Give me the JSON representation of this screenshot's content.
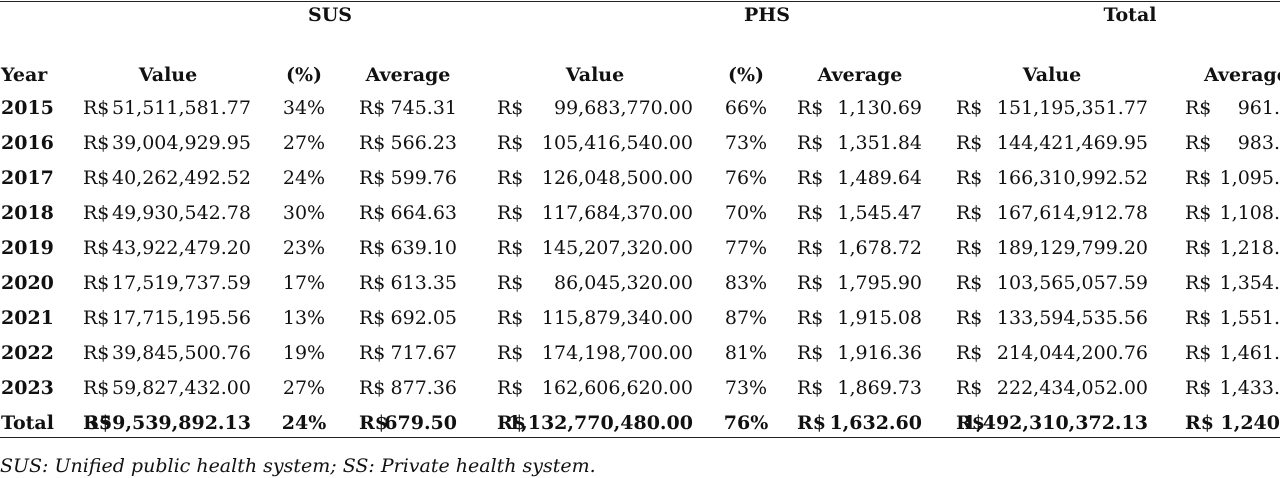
{
  "groups": {
    "sus": "SUS",
    "phs": "PHS",
    "total": "Total"
  },
  "columns": {
    "year": "Year",
    "sus_value": "Value",
    "sus_pct": "(%)",
    "sus_avg": "Average",
    "phs_value": "Value",
    "phs_pct": "(%)",
    "phs_avg": "Average",
    "total_value": "Value",
    "total_avg": "Average"
  },
  "currency": "R$",
  "rows": [
    {
      "year": "2015",
      "sus_value": "51,511,581.77",
      "sus_pct": "34%",
      "sus_avg": "745.31",
      "phs_value": "99,683,770.00",
      "phs_pct": "66%",
      "phs_avg": "1,130.69",
      "total_value": "151,195,351.77",
      "total_avg": "961."
    },
    {
      "year": "2016",
      "sus_value": "39,004,929.95",
      "sus_pct": "27%",
      "sus_avg": "566.23",
      "phs_value": "105,416,540.00",
      "phs_pct": "73%",
      "phs_avg": "1,351.84",
      "total_value": "144,421,469.95",
      "total_avg": "983."
    },
    {
      "year": "2017",
      "sus_value": "40,262,492.52",
      "sus_pct": "24%",
      "sus_avg": "599.76",
      "phs_value": "126,048,500.00",
      "phs_pct": "76%",
      "phs_avg": "1,489.64",
      "total_value": "166,310,992.52",
      "total_avg": "1,095."
    },
    {
      "year": "2018",
      "sus_value": "49,930,542.78",
      "sus_pct": "30%",
      "sus_avg": "664.63",
      "phs_value": "117,684,370.00",
      "phs_pct": "70%",
      "phs_avg": "1,545.47",
      "total_value": "167,614,912.78",
      "total_avg": "1,108."
    },
    {
      "year": "2019",
      "sus_value": "43,922,479.20",
      "sus_pct": "23%",
      "sus_avg": "639.10",
      "phs_value": "145,207,320.00",
      "phs_pct": "77%",
      "phs_avg": "1,678.72",
      "total_value": "189,129,799.20",
      "total_avg": "1,218."
    },
    {
      "year": "2020",
      "sus_value": "17,519,737.59",
      "sus_pct": "17%",
      "sus_avg": "613.35",
      "phs_value": "86,045,320.00",
      "phs_pct": "83%",
      "phs_avg": "1,795.90",
      "total_value": "103,565,057.59",
      "total_avg": "1,354."
    },
    {
      "year": "2021",
      "sus_value": "17,715,195.56",
      "sus_pct": "13%",
      "sus_avg": "692.05",
      "phs_value": "115,879,340.00",
      "phs_pct": "87%",
      "phs_avg": "1,915.08",
      "total_value": "133,594,535.56",
      "total_avg": "1,551."
    },
    {
      "year": "2022",
      "sus_value": "39,845,500.76",
      "sus_pct": "19%",
      "sus_avg": "717.67",
      "phs_value": "174,198,700.00",
      "phs_pct": "81%",
      "phs_avg": "1,916.36",
      "total_value": "214,044,200.76",
      "total_avg": "1,461."
    },
    {
      "year": "2023",
      "sus_value": "59,827,432.00",
      "sus_pct": "27%",
      "sus_avg": "877.36",
      "phs_value": "162,606,620.00",
      "phs_pct": "73%",
      "phs_avg": "1,869.73",
      "total_value": "222,434,052.00",
      "total_avg": "1,433."
    }
  ],
  "total_row": {
    "year": "Total",
    "sus_value": "359,539,892.13",
    "sus_pct": "24%",
    "sus_avg": "679.50",
    "phs_value": "1,132,770,480.00",
    "phs_pct": "76%",
    "phs_avg": "1,632.60",
    "total_value": "1,492,310,372.13",
    "total_avg": "1,240"
  },
  "footnote": "SUS: Unified public health system; SS: Private health system."
}
